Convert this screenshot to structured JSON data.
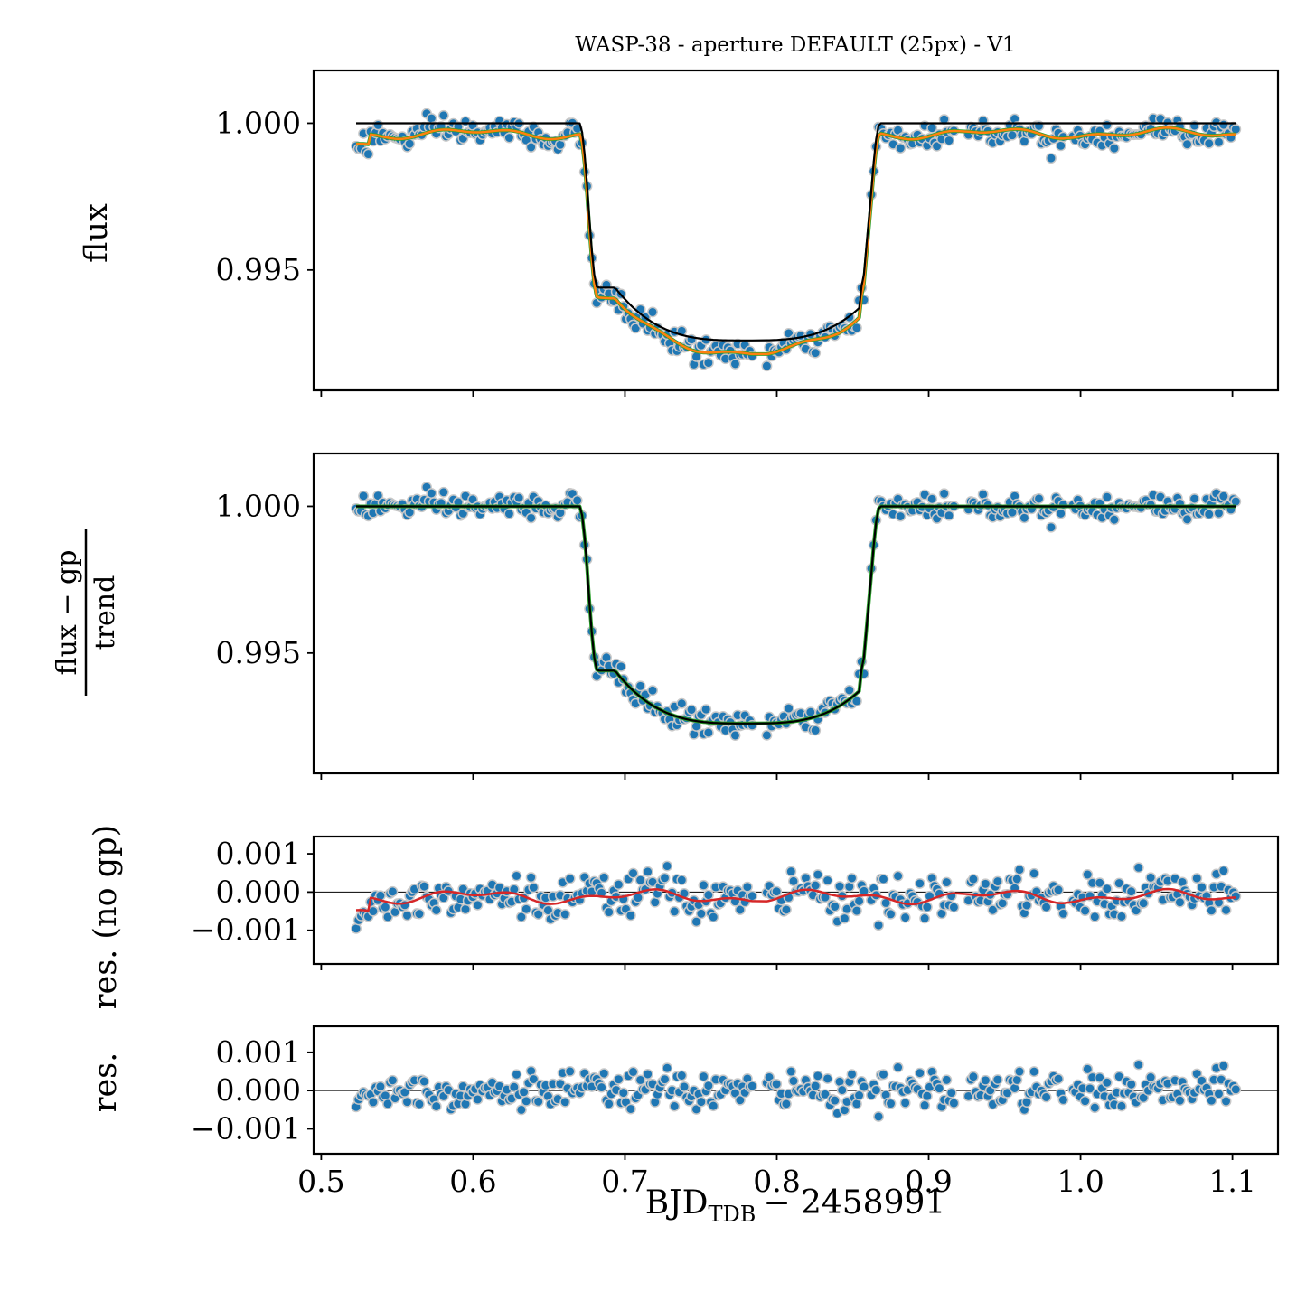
{
  "figure": {
    "title": "WASP-38 - aperture DEFAULT (25px) - V1",
    "xlabel_main": "BJD",
    "xlabel_sub": "TDB",
    "xlabel_tail": "− 2458991",
    "x_ticks": [
      "0.5",
      "0.6",
      "0.7",
      "0.8",
      "0.9",
      "1.0",
      "1.1"
    ],
    "xlim": [
      0.495,
      1.13
    ]
  },
  "chart_data": [
    {
      "type": "scatter",
      "panel": "raw-flux",
      "title": "WASP-38 - aperture DEFAULT (25px) - V1",
      "ylabel": "flux",
      "ylim": [
        0.9909,
        1.0018
      ],
      "y_tick_values": [
        0.995,
        1.0
      ],
      "y_tick_labels": [
        "0.995",
        "1.000"
      ],
      "transit": {
        "ingress_start": 0.67,
        "ingress_end": 0.682,
        "egress_start": 0.855,
        "egress_end": 0.868,
        "center": 0.78,
        "depth": 0.0072,
        "bottom_curvature": 0.0018
      },
      "x_range": [
        0.523,
        1.103
      ],
      "series": [
        {
          "name": "data",
          "kind": "points",
          "color": "#1f77b4",
          "edge": "#c8c8c8",
          "scatter_sigma": 0.00022,
          "baseline_offset": -0.0004
        },
        {
          "name": "transit model",
          "kind": "line",
          "color": "#000000"
        },
        {
          "name": "gp + trend model",
          "kind": "line",
          "color": "#2ca02c"
        },
        {
          "name": "full model",
          "kind": "line",
          "color": "#ff7f0e"
        }
      ]
    },
    {
      "type": "scatter",
      "panel": "detrended-flux",
      "ylabel_numerator": "flux − gp",
      "ylabel_denominator": "trend",
      "ylim": [
        0.9909,
        1.0018
      ],
      "y_tick_values": [
        0.995,
        1.0
      ],
      "y_tick_labels": [
        "0.995",
        "1.000"
      ],
      "series": [
        {
          "name": "data",
          "kind": "points",
          "color": "#1f77b4",
          "edge": "#c8c8c8",
          "scatter_sigma": 0.00022
        },
        {
          "name": "model",
          "kind": "line",
          "color": "#2ca02c"
        },
        {
          "name": "transit model",
          "kind": "line",
          "color": "#000000"
        }
      ]
    },
    {
      "type": "scatter",
      "panel": "residuals-no-gp",
      "ylabel": "res. (no gp)",
      "ylim": [
        -0.00188,
        0.00145
      ],
      "y_tick_values": [
        0.001,
        0.0,
        -0.001
      ],
      "y_tick_labels": [
        "0.001",
        "0.000",
        "−0.001"
      ],
      "series": [
        {
          "name": "residuals",
          "kind": "points",
          "color": "#1f77b4",
          "edge": "#c8c8c8",
          "scatter_sigma": 0.00028
        },
        {
          "name": "gp",
          "kind": "line",
          "color": "#d62728"
        },
        {
          "name": "zero",
          "kind": "hline",
          "color": "#000000",
          "value": 0
        }
      ]
    },
    {
      "type": "scatter",
      "panel": "residuals",
      "ylabel": "res.",
      "ylim": [
        -0.00165,
        0.00168
      ],
      "y_tick_values": [
        0.001,
        0.0,
        -0.001
      ],
      "y_tick_labels": [
        "0.001",
        "0.000",
        "−0.001"
      ],
      "series": [
        {
          "name": "residuals",
          "kind": "points",
          "color": "#1f77b4",
          "edge": "#c8c8c8",
          "scatter_sigma": 0.00025
        },
        {
          "name": "zero",
          "kind": "hline",
          "color": "#000000",
          "value": 0
        }
      ]
    }
  ]
}
